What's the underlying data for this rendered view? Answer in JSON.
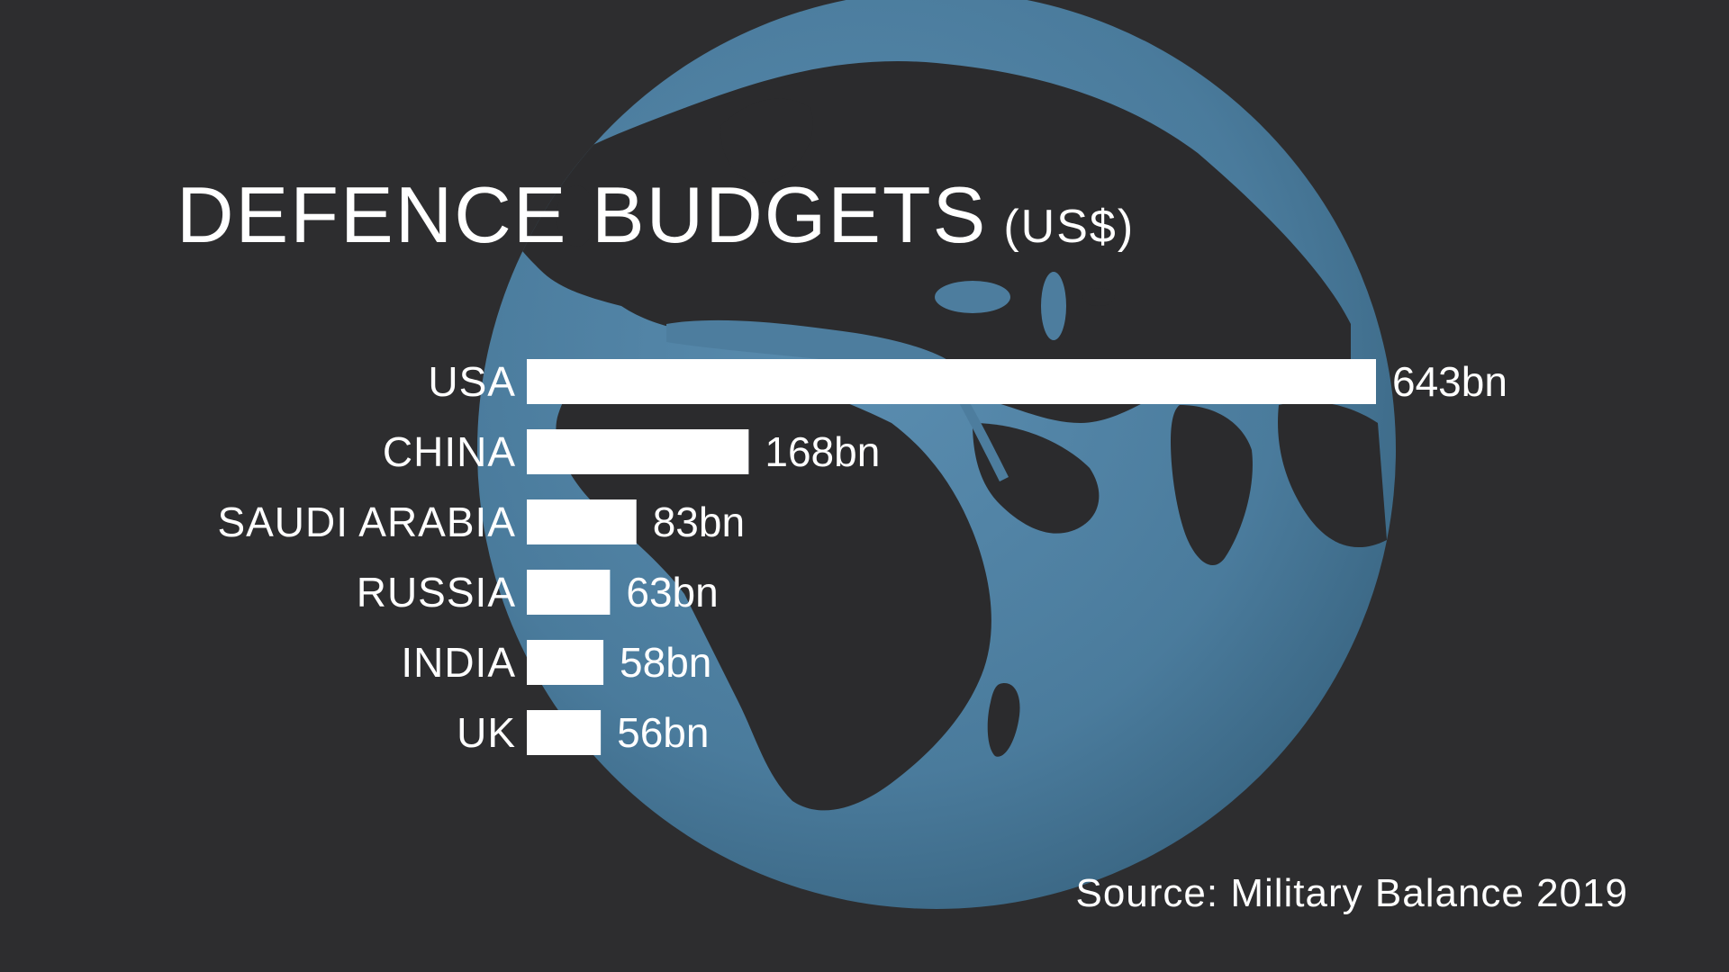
{
  "title": "DEFENCE BUDGETS",
  "title_unit": "(US$)",
  "source": "Source: Military Balance 2019",
  "colors": {
    "background": "#2d2d2f",
    "ocean": "#4d7d9e",
    "land": "#2b2b2d",
    "bars": "#ffffff",
    "text": "#ffffff"
  },
  "chart_data": {
    "type": "bar",
    "orientation": "horizontal",
    "categories": [
      "USA",
      "CHINA",
      "SAUDI ARABIA",
      "RUSSIA",
      "INDIA",
      "UK"
    ],
    "values": [
      643,
      168,
      83,
      63,
      58,
      56
    ],
    "value_labels": [
      "643bn",
      "168bn",
      "83bn",
      "63bn",
      "58bn",
      "56bn"
    ],
    "title": "DEFENCE BUDGETS",
    "unit": "(US$)",
    "xlim": [
      0,
      643
    ],
    "grid": false,
    "legend": "none"
  }
}
